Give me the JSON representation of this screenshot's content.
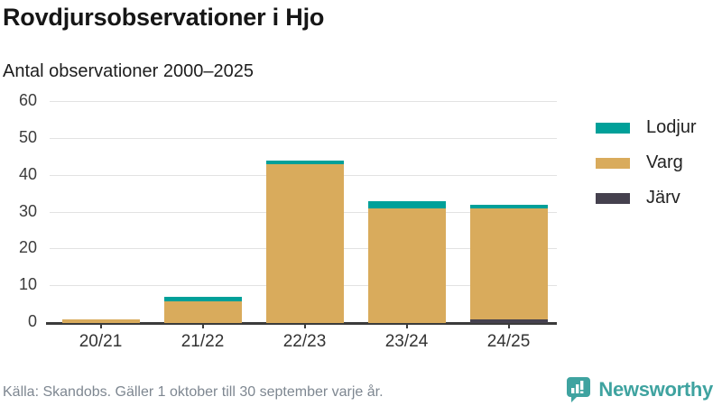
{
  "header": {
    "title": "Rovdjursobservationer i Hjo",
    "subtitle": "Antal observationer 2000–2025"
  },
  "chart_data": {
    "type": "bar",
    "stacked": true,
    "categories": [
      "20/21",
      "21/22",
      "22/23",
      "23/24",
      "24/25"
    ],
    "series": [
      {
        "name": "Lodjur",
        "color": "#00a099",
        "values": [
          0,
          1,
          1,
          2,
          1
        ]
      },
      {
        "name": "Varg",
        "color": "#d9ab5c",
        "values": [
          1,
          6,
          43,
          31,
          30
        ]
      },
      {
        "name": "Järv",
        "color": "#45414e",
        "values": [
          0,
          0,
          0,
          0,
          1
        ]
      }
    ],
    "stack_totals": [
      1,
      7,
      44,
      33,
      32
    ],
    "title": "Rovdjursobservationer i Hjo",
    "subtitle": "Antal observationer 2000–2025",
    "xlabel": "",
    "ylabel": "",
    "ylim": [
      0,
      60
    ],
    "yticks": [
      0,
      10,
      20,
      30,
      40,
      50,
      60
    ],
    "grid": true,
    "legend_position": "right",
    "legend": [
      "Lodjur",
      "Varg",
      "Järv"
    ]
  },
  "footer": {
    "source": "Källa: Skandobs. Gäller 1 oktober till 30 september varje år.",
    "brand": "Newsworthy",
    "brand_color": "#3fa3a0"
  }
}
